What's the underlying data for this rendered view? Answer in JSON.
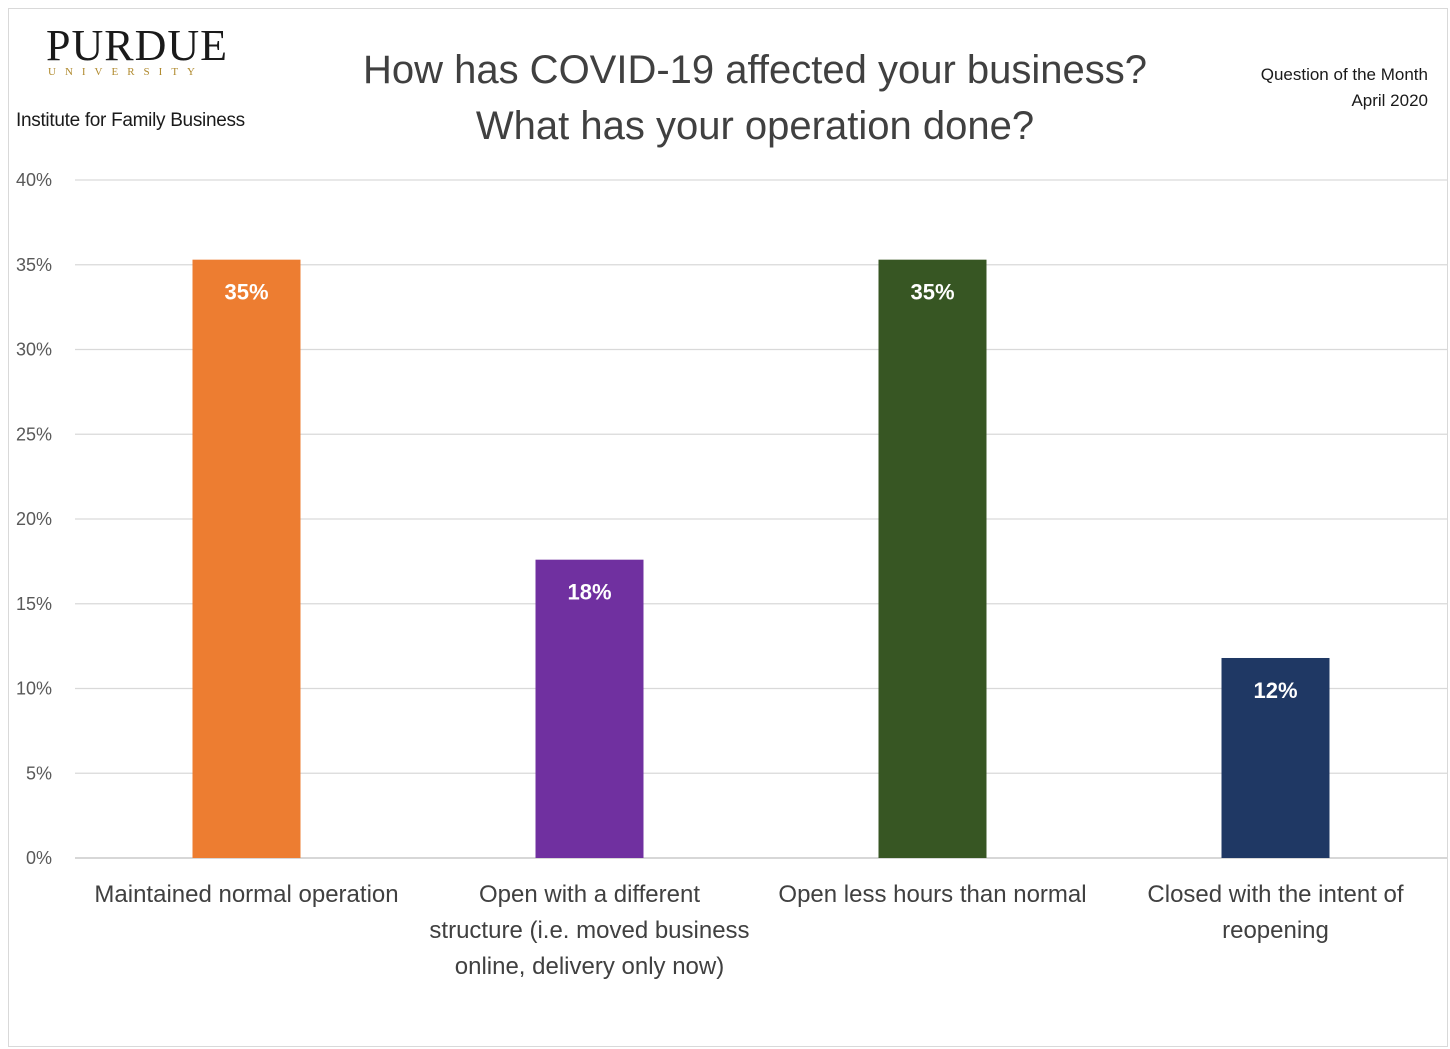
{
  "header": {
    "logo_name": "PURDUE",
    "logo_sub": "UNIVERSITY",
    "institute": "Institute for Family Business",
    "title_line1": "How has COVID-19 affected your business?",
    "title_line2": "What has your operation done?",
    "qom_line1": "Question of the Month",
    "qom_line2": "April 2020"
  },
  "chart_data": {
    "type": "bar",
    "title": "How has COVID-19 affected your business? What has your operation done?",
    "categories": [
      [
        "Maintained normal operation"
      ],
      [
        "Open with a different",
        "structure (i.e. moved business",
        "online, delivery only now)"
      ],
      [
        "Open less hours than normal"
      ],
      [
        "Closed with the intent of",
        "reopening"
      ]
    ],
    "values": [
      0.353,
      0.176,
      0.353,
      0.118
    ],
    "data_labels": [
      "35%",
      "18%",
      "35%",
      "12%"
    ],
    "colors": [
      "#ed7d31",
      "#7030a0",
      "#375623",
      "#1f3864"
    ],
    "ylim": [
      0,
      0.4
    ],
    "yticks": [
      0,
      0.05,
      0.1,
      0.15,
      0.2,
      0.25,
      0.3,
      0.35,
      0.4
    ],
    "ytick_labels": [
      "0%",
      "5%",
      "10%",
      "15%",
      "20%",
      "25%",
      "30%",
      "35%",
      "40%"
    ],
    "grid": true,
    "legend": "none"
  }
}
